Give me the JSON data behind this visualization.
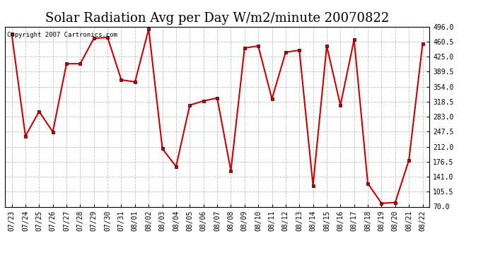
{
  "title": "Solar Radiation Avg per Day W/m2/minute 20070822",
  "copyright_text": "Copyright 2007 Cartronics.com",
  "labels": [
    "07/23",
    "07/24",
    "07/25",
    "07/26",
    "07/27",
    "07/28",
    "07/29",
    "07/30",
    "07/31",
    "08/01",
    "08/02",
    "08/03",
    "08/04",
    "08/05",
    "08/06",
    "08/07",
    "08/08",
    "08/09",
    "08/10",
    "08/11",
    "08/12",
    "08/13",
    "08/14",
    "08/15",
    "08/16",
    "08/17",
    "08/18",
    "08/19",
    "08/20",
    "08/21",
    "08/22"
  ],
  "values": [
    478,
    237,
    295,
    247,
    408,
    408,
    468,
    470,
    370,
    365,
    490,
    207,
    165,
    310,
    320,
    327,
    155,
    445,
    450,
    325,
    435,
    440,
    120,
    450,
    310,
    465,
    125,
    78,
    80,
    180,
    455
  ],
  "line_color": "#cc0000",
  "marker": "s",
  "marker_size": 2.5,
  "bg_color": "#ffffff",
  "grid_color": "#c0c0c0",
  "ylim_min": 70.0,
  "ylim_max": 496.0,
  "yticks": [
    70.0,
    105.5,
    141.0,
    176.5,
    212.0,
    247.5,
    283.0,
    318.5,
    354.0,
    389.5,
    425.0,
    460.5,
    496.0
  ],
  "title_fontsize": 13,
  "tick_fontsize": 7,
  "copyright_fontsize": 6.5,
  "linewidth": 1.5
}
